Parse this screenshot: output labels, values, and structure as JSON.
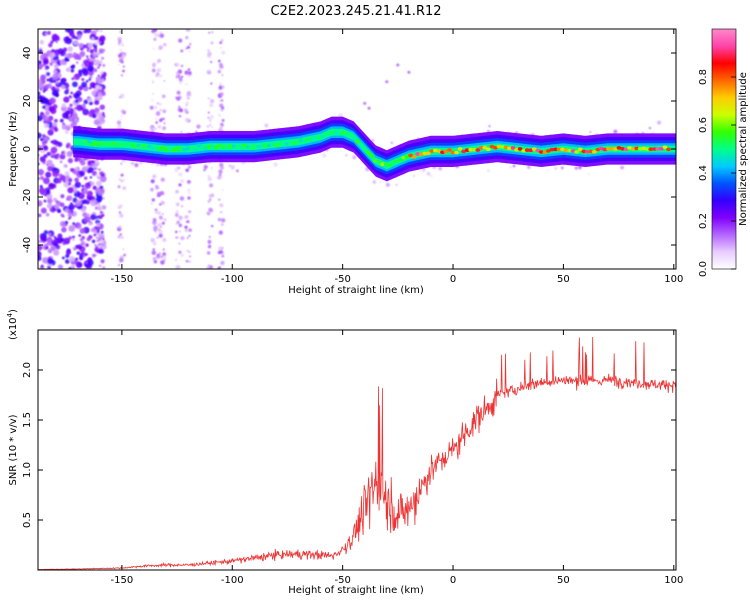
{
  "title": "C2E2.2023.245.21.41.R12",
  "chart_data": [
    {
      "type": "heatmap",
      "title": "C2E2.2023.245.21.41.R12",
      "xlabel": "Height of straight line (km)",
      "ylabel": "Frequency (Hz)",
      "xlim": [
        -188,
        101
      ],
      "ylim": [
        -50,
        50
      ],
      "x_ticks": [
        -150,
        -100,
        -50,
        0,
        50,
        100
      ],
      "y_ticks": [
        -40,
        -20,
        0,
        20,
        40
      ],
      "ridge": {
        "x": [
          -170,
          -160,
          -150,
          -140,
          -130,
          -120,
          -110,
          -100,
          -90,
          -80,
          -70,
          -60,
          -55,
          -50,
          -45,
          -40,
          -35,
          -30,
          -25,
          -20,
          -10,
          0,
          10,
          20,
          30,
          40,
          50,
          60,
          70,
          80,
          90,
          100
        ],
        "freq": [
          3,
          2,
          2,
          1,
          0,
          0,
          1,
          1,
          1,
          2,
          3,
          5,
          7,
          7,
          5,
          0,
          -5,
          -7,
          -5,
          -3,
          -1,
          -1,
          0,
          1,
          0,
          -1,
          0,
          -1,
          0,
          0,
          0,
          0
        ]
      },
      "colorbar": {
        "label": "Normalized spectral amplitude",
        "range": [
          0,
          1
        ],
        "ticks": [
          "0.0",
          "0.2",
          "0.4",
          "0.6",
          "0.8"
        ],
        "colors": [
          "#ffffff",
          "#e8ccff",
          "#b366ff",
          "#7f00ff",
          "#3300ff",
          "#0055ff",
          "#00ccff",
          "#00ff88",
          "#33ff00",
          "#ccff00",
          "#ffcc00",
          "#ff6600",
          "#ff0000",
          "#ff44aa",
          "#ff88cc"
        ]
      }
    },
    {
      "type": "line",
      "xlabel": "Height of straight line (km)",
      "ylabel": "SNR (10 * v/v)",
      "multiplier": "(x10",
      "multiplier_exp": "4",
      "multiplier_close": ")",
      "xlim": [
        -188,
        101
      ],
      "ylim": [
        0,
        2.4
      ],
      "x_ticks": [
        -150,
        -100,
        -50,
        0,
        50,
        100
      ],
      "y_ticks": [
        0.5,
        1.0,
        1.5,
        2.0
      ],
      "y_tick_labels": [
        "0.5",
        "1.0",
        "1.5",
        "2.0"
      ],
      "color": "#ee3333",
      "series": [
        {
          "name": "SNR",
          "x": [
            -188,
            -170,
            -150,
            -140,
            -130,
            -120,
            -110,
            -100,
            -90,
            -80,
            -70,
            -60,
            -55,
            -50,
            -45,
            -40,
            -35,
            -30,
            -25,
            -20,
            -15,
            -10,
            -5,
            0,
            5,
            10,
            15,
            20,
            30,
            40,
            50,
            60,
            70,
            80,
            90,
            100
          ],
          "y": [
            0.005,
            0.01,
            0.02,
            0.04,
            0.05,
            0.05,
            0.07,
            0.09,
            0.12,
            0.15,
            0.16,
            0.15,
            0.14,
            0.2,
            0.35,
            0.6,
            0.9,
            0.7,
            0.55,
            0.6,
            0.8,
            1.0,
            1.1,
            1.2,
            1.35,
            1.5,
            1.6,
            1.75,
            1.82,
            1.88,
            1.9,
            1.88,
            1.9,
            1.88,
            1.86,
            1.85
          ]
        }
      ]
    }
  ]
}
